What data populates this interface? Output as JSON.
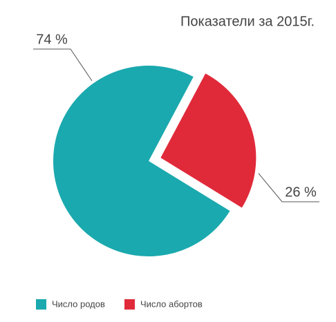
{
  "chart_data": {
    "type": "pie",
    "title": "Показатели за 2015г.",
    "categories": [
      "Число родов",
      "Число абортов"
    ],
    "values": [
      74,
      26
    ],
    "value_labels": [
      "74 %",
      "26 %"
    ],
    "colors": [
      "#1aa9ae",
      "#e02a3a"
    ],
    "exploded": [
      false,
      true
    ]
  }
}
